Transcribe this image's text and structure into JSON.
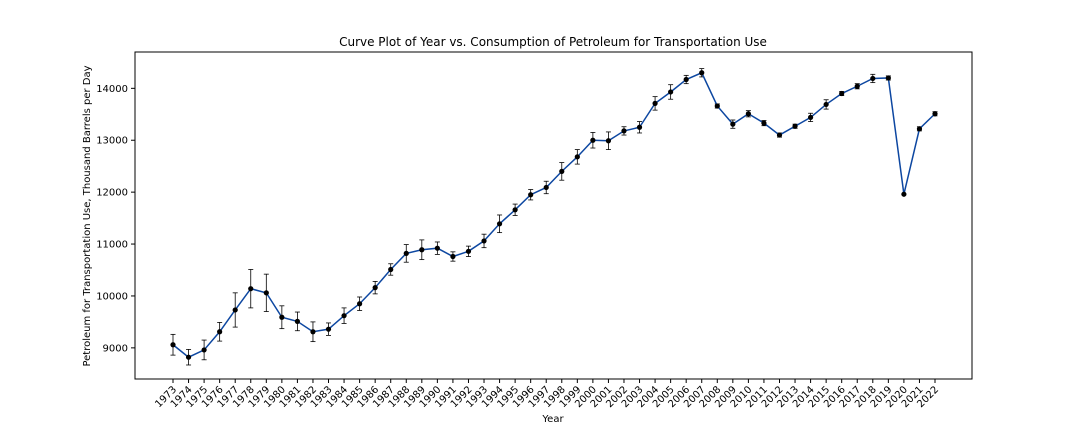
{
  "chart_data": {
    "type": "line",
    "title": "Curve Plot of Year vs. Consumption of Petroleum for Transportation Use",
    "xlabel": "Year",
    "ylabel": "Petroleum for Transportation Use, Thousand Barrels per Day",
    "ylim": [
      8400,
      14700
    ],
    "yticks": [
      9000,
      10000,
      11000,
      12000,
      13000,
      14000
    ],
    "grid": false,
    "line_color": "#0d47a1",
    "marker_color": "#000000",
    "categories": [
      "1973",
      "1974",
      "1975",
      "1976",
      "1977",
      "1978",
      "1979",
      "1980",
      "1981",
      "1982",
      "1983",
      "1984",
      "1985",
      "1986",
      "1987",
      "1988",
      "1989",
      "1990",
      "1991",
      "1992",
      "1993",
      "1994",
      "1995",
      "1996",
      "1997",
      "1998",
      "1999",
      "2000",
      "2001",
      "2002",
      "2003",
      "2004",
      "2005",
      "2006",
      "2007",
      "2008",
      "2009",
      "2010",
      "2011",
      "2012",
      "2013",
      "2014",
      "2015",
      "2016",
      "2017",
      "2018",
      "2019",
      "2020",
      "2021",
      "2022"
    ],
    "series": [
      {
        "values": [
          9060,
          8820,
          8960,
          9310,
          9730,
          10140,
          10060,
          9590,
          9510,
          9310,
          9360,
          9620,
          9850,
          10160,
          10510,
          10820,
          10890,
          10920,
          10760,
          10860,
          11060,
          11390,
          11660,
          11950,
          12090,
          12400,
          12680,
          13000,
          12990,
          13180,
          13250,
          13710,
          13930,
          14170,
          14300,
          13660,
          13310,
          13510,
          13330,
          13100,
          13270,
          13440,
          13690,
          13900,
          14040,
          14190,
          14200,
          11960,
          13220,
          13510
        ],
        "errors": [
          200,
          150,
          190,
          180,
          330,
          370,
          360,
          220,
          180,
          190,
          120,
          150,
          130,
          120,
          110,
          170,
          190,
          120,
          90,
          100,
          130,
          170,
          110,
          100,
          120,
          170,
          140,
          150,
          170,
          80,
          110,
          130,
          140,
          80,
          80,
          40,
          80,
          60,
          50,
          40,
          40,
          80,
          90,
          40,
          50,
          80,
          40,
          0,
          40,
          40
        ]
      }
    ]
  }
}
